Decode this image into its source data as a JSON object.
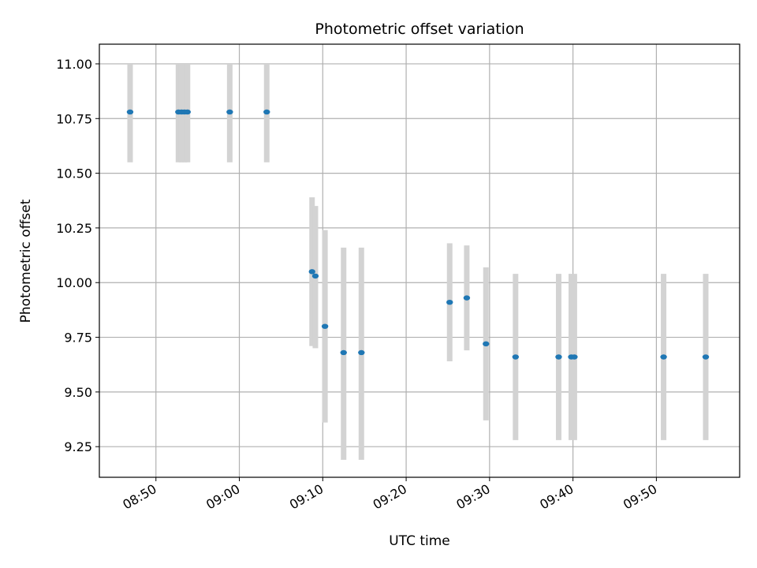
{
  "chart_data": {
    "type": "scatter",
    "title": "Photometric offset variation",
    "xlabel": "UTC time",
    "ylabel": "Photometric offset",
    "x_axis": {
      "kind": "time",
      "range": [
        "08:43:13",
        "09:59:59"
      ],
      "ticks": [
        "08:50",
        "09:00",
        "09:10",
        "09:20",
        "09:30",
        "09:40",
        "09:50"
      ]
    },
    "y_axis": {
      "range": [
        9.11,
        11.09
      ],
      "ticks": [
        "9.25",
        "9.50",
        "9.75",
        "10.00",
        "10.25",
        "10.50",
        "10.75",
        "11.00"
      ]
    },
    "grid": true,
    "legend": null,
    "colors": {
      "points": "#1f77b4",
      "errorbars": "#d3d3d3"
    },
    "series": [
      {
        "points": [
          {
            "x": "08:46:54",
            "y": 10.78,
            "ylow": 10.55,
            "yhigh": 11.0
          },
          {
            "x": "08:52:42",
            "y": 10.78,
            "ylow": 10.55,
            "yhigh": 11.0
          },
          {
            "x": "08:53:04",
            "y": 10.78,
            "ylow": 10.55,
            "yhigh": 11.0
          },
          {
            "x": "08:53:25",
            "y": 10.78,
            "ylow": 10.55,
            "yhigh": 11.0
          },
          {
            "x": "08:53:47",
            "y": 10.78,
            "ylow": 10.55,
            "yhigh": 11.0
          },
          {
            "x": "08:58:51",
            "y": 10.78,
            "ylow": 10.55,
            "yhigh": 11.0
          },
          {
            "x": "09:03:17",
            "y": 10.78,
            "ylow": 10.55,
            "yhigh": 11.0
          },
          {
            "x": "09:08:43",
            "y": 10.05,
            "ylow": 9.71,
            "yhigh": 10.39
          },
          {
            "x": "09:09:07",
            "y": 10.03,
            "ylow": 9.7,
            "yhigh": 10.35
          },
          {
            "x": "09:10:16",
            "y": 9.8,
            "ylow": 9.36,
            "yhigh": 10.24
          },
          {
            "x": "09:12:30",
            "y": 9.68,
            "ylow": 9.19,
            "yhigh": 10.16
          },
          {
            "x": "09:14:38",
            "y": 9.68,
            "ylow": 9.19,
            "yhigh": 10.16
          },
          {
            "x": "09:25:13",
            "y": 9.91,
            "ylow": 9.64,
            "yhigh": 10.18
          },
          {
            "x": "09:27:16",
            "y": 9.93,
            "ylow": 9.69,
            "yhigh": 10.17
          },
          {
            "x": "09:29:34",
            "y": 9.72,
            "ylow": 9.37,
            "yhigh": 10.07
          },
          {
            "x": "09:33:07",
            "y": 9.66,
            "ylow": 9.28,
            "yhigh": 10.04
          },
          {
            "x": "09:38:17",
            "y": 9.66,
            "ylow": 9.28,
            "yhigh": 10.04
          },
          {
            "x": "09:39:48",
            "y": 9.66,
            "ylow": 9.28,
            "yhigh": 10.04
          },
          {
            "x": "09:40:10",
            "y": 9.66,
            "ylow": 9.28,
            "yhigh": 10.04
          },
          {
            "x": "09:50:52",
            "y": 9.66,
            "ylow": 9.28,
            "yhigh": 10.04
          },
          {
            "x": "09:55:55",
            "y": 9.66,
            "ylow": 9.28,
            "yhigh": 10.04
          }
        ]
      }
    ]
  }
}
